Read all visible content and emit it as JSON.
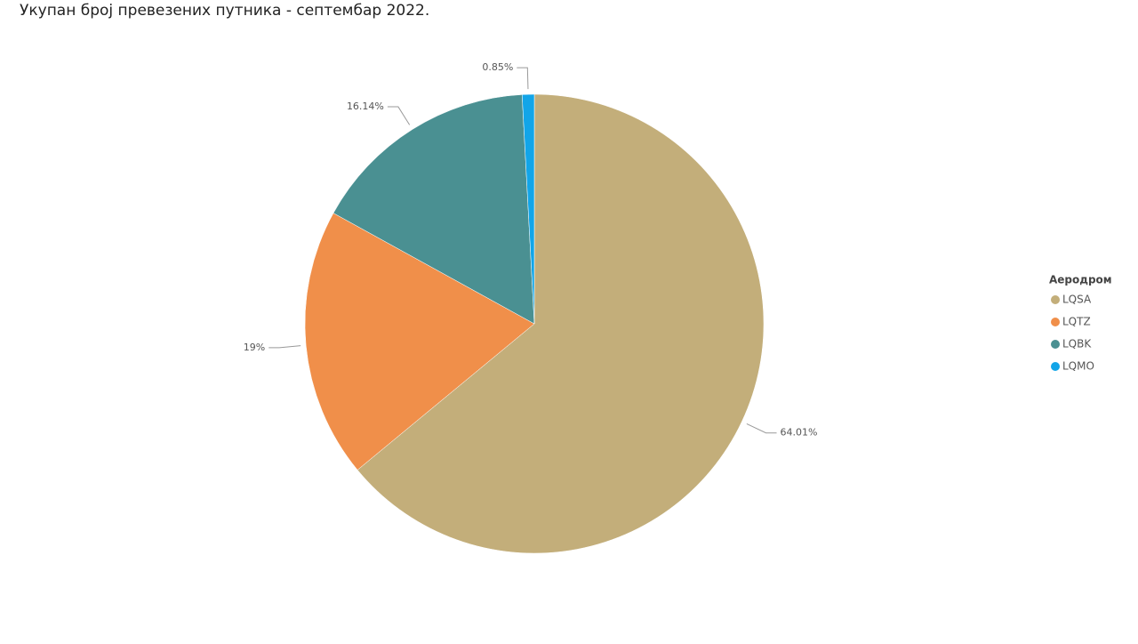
{
  "chart_data": {
    "type": "pie",
    "title": "Укупан број превезених путника - септембар 2022.",
    "legend_title": "Аеродром",
    "categories": [
      "LQSA",
      "LQTZ",
      "LQBK",
      "LQMO"
    ],
    "values": [
      64.01,
      19,
      16.14,
      0.85
    ],
    "value_labels": [
      "64.01%",
      "19%",
      "16.14%",
      "0.85%"
    ],
    "colors": [
      "#c3ae7a",
      "#f08f4a",
      "#4a9092",
      "#12a5e8"
    ],
    "legend_position": "right"
  }
}
